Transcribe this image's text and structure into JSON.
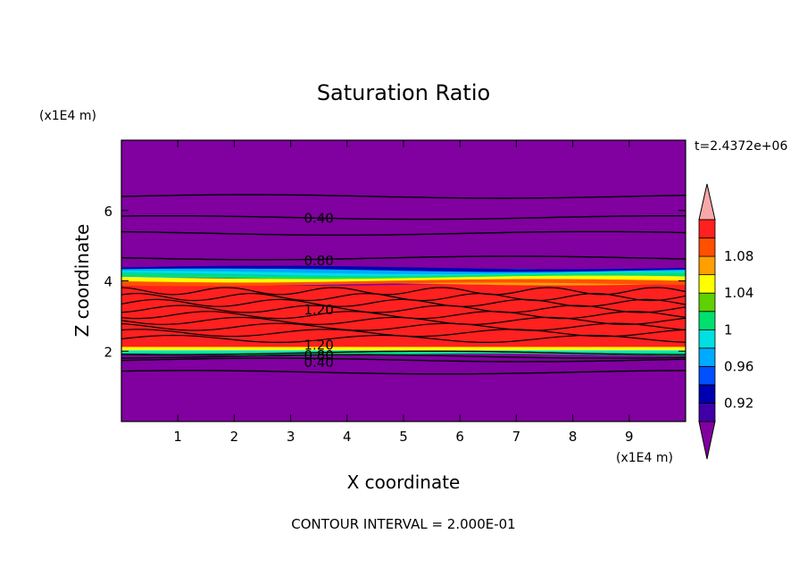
{
  "chart_data": {
    "type": "heatmap",
    "title": "Saturation Ratio",
    "xlabel": "X coordinate",
    "ylabel": "Z coordinate",
    "x_unit": "(x1E4 m)",
    "y_unit": "(x1E4 m)",
    "time_label": "t=2.4372e+06",
    "footer": "CONTOUR INTERVAL = 2.000E-01",
    "xlim": [
      0,
      10
    ],
    "ylim": [
      0,
      8
    ],
    "x_ticks": [
      1,
      2,
      3,
      4,
      5,
      6,
      7,
      8,
      9
    ],
    "y_ticks": [
      2,
      4,
      6
    ],
    "colorbar": {
      "levels": [
        0.9,
        0.92,
        0.94,
        0.96,
        0.98,
        1.0,
        1.02,
        1.04,
        1.06,
        1.08,
        1.1
      ],
      "colors": [
        "#8000a0",
        "#4000a8",
        "#0000b0",
        "#0050ff",
        "#00aaff",
        "#00e0e0",
        "#00e070",
        "#60d000",
        "#ffff00",
        "#ffa000",
        "#ff5000",
        "#ff2020",
        "#f8a8a8"
      ],
      "tick_labels": [
        "0.92",
        "0.96",
        "1",
        "1.04",
        "1.08"
      ],
      "tick_values": [
        0.92,
        0.96,
        1.0,
        1.04,
        1.08
      ]
    },
    "layers": [
      {
        "z_range": [
          0,
          1.9
        ],
        "value": 0.3
      },
      {
        "z_range": [
          1.9,
          2.05
        ],
        "value": 1.0
      },
      {
        "z_range": [
          2.05,
          3.9
        ],
        "value": 1.2
      },
      {
        "z_range": [
          3.9,
          4.1
        ],
        "value": 1.07
      },
      {
        "z_range": [
          4.1,
          4.35
        ],
        "value": 0.97
      },
      {
        "z_range": [
          4.35,
          8.0
        ],
        "value": 0.3
      }
    ],
    "contour_labels": [
      {
        "text": "0.40",
        "x": 3.5,
        "z": 5.8
      },
      {
        "text": "0.80",
        "x": 3.5,
        "z": 4.6
      },
      {
        "text": "1.20",
        "x": 3.5,
        "z": 3.2
      },
      {
        "text": "1.20",
        "x": 3.5,
        "z": 2.2
      },
      {
        "text": "0.80",
        "x": 3.5,
        "z": 1.9
      },
      {
        "text": "0.40",
        "x": 3.5,
        "z": 1.7
      }
    ],
    "contour_levels_z": [
      6.4,
      5.8,
      5.35,
      4.65,
      1.95,
      1.85,
      1.75,
      1.4
    ]
  }
}
